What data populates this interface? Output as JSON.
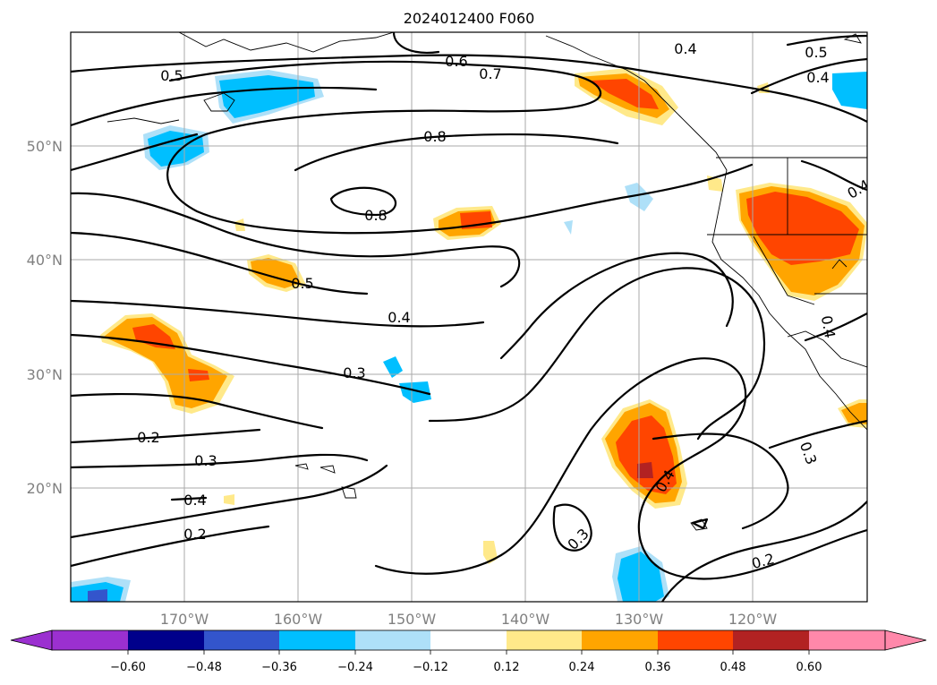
{
  "title": "2024012400 F060",
  "map": {
    "lon_labels": [
      "170°W",
      "160°W",
      "150°W",
      "140°W",
      "130°W",
      "120°W"
    ],
    "lat_labels": [
      "50°N",
      "40°N",
      "30°N",
      "20°N"
    ],
    "contour_labels": [
      "0.5",
      "0.6",
      "0.7",
      "0.4",
      "0.5",
      "0.4",
      "0.8",
      "0.8",
      "0.5",
      "0.4",
      "0.3",
      "0.2",
      "0.3",
      "0.4",
      "0.2",
      "0.4",
      "0.3",
      "0.3",
      "0.2",
      "0.4",
      "0.4"
    ]
  },
  "colorbar": {
    "tick_labels": [
      "−0.60",
      "−0.48",
      "−0.36",
      "−0.24",
      "−0.12",
      "0.12",
      "0.24",
      "0.36",
      "0.48",
      "0.60"
    ],
    "colors": {
      "under": "#9b30d0",
      "b1": "#00008b",
      "b2": "#3355cc",
      "b3": "#00bfff",
      "b4": "#aee0f8",
      "b5": "#ffffff",
      "b6": "#ffe98a",
      "b7": "#ffa500",
      "b8": "#ff4500",
      "b9": "#b22222",
      "over": "#ff88aa"
    }
  }
}
